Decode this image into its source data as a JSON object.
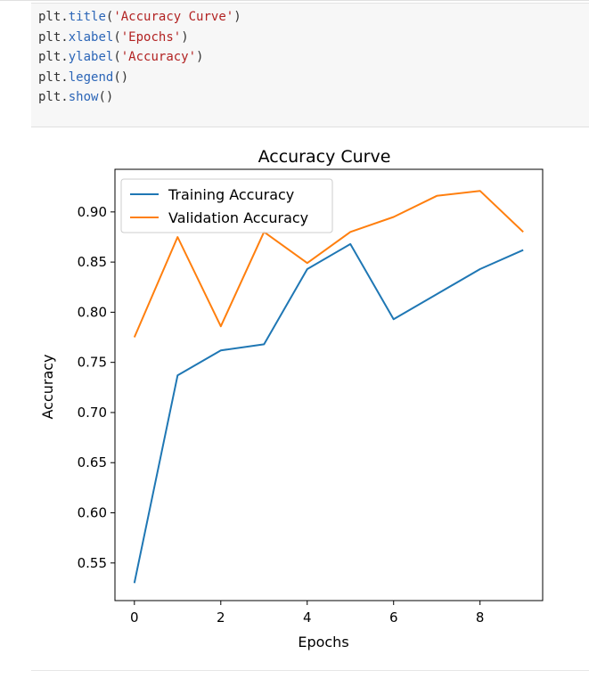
{
  "code_cell": {
    "lines": [
      {
        "obj": "plt",
        "fn": "title",
        "arg": "'Accuracy Curve'"
      },
      {
        "obj": "plt",
        "fn": "xlabel",
        "arg": "'Epochs'"
      },
      {
        "obj": "plt",
        "fn": "ylabel",
        "arg": "'Accuracy'"
      },
      {
        "obj": "plt",
        "fn": "legend",
        "arg": ""
      },
      {
        "obj": "plt",
        "fn": "show",
        "arg": ""
      }
    ]
  },
  "chart_data": {
    "type": "line",
    "title": "Accuracy Curve",
    "xlabel": "Epochs",
    "ylabel": "Accuracy",
    "x": [
      0,
      1,
      2,
      3,
      4,
      5,
      6,
      7,
      8,
      9
    ],
    "xlim": [
      -0.45,
      9.45
    ],
    "ylim": [
      0.5125,
      0.9425
    ],
    "xticks": [
      0,
      2,
      4,
      6,
      8
    ],
    "yticks": [
      0.55,
      0.6,
      0.65,
      0.7,
      0.75,
      0.8,
      0.85,
      0.9
    ],
    "xtick_labels": [
      "0",
      "2",
      "4",
      "6",
      "8"
    ],
    "ytick_labels": [
      "0.55",
      "0.60",
      "0.65",
      "0.70",
      "0.75",
      "0.80",
      "0.85",
      "0.90"
    ],
    "grid": false,
    "legend_position": "upper-left",
    "series": [
      {
        "name": "Training Accuracy",
        "color": "#1f77b4",
        "values": [
          0.53,
          0.737,
          0.762,
          0.768,
          0.843,
          0.868,
          0.793,
          0.818,
          0.843,
          0.862
        ]
      },
      {
        "name": "Validation Accuracy",
        "color": "#ff7f0e",
        "values": [
          0.775,
          0.875,
          0.786,
          0.88,
          0.849,
          0.88,
          0.895,
          0.916,
          0.921,
          0.88
        ]
      }
    ]
  }
}
